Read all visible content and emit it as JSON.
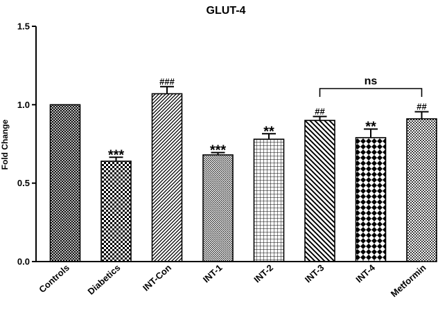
{
  "chart_data": {
    "type": "bar",
    "title": "GLUT-4",
    "xlabel": "",
    "ylabel": "Fold Change",
    "ylim": [
      0,
      1.5
    ],
    "yticks": [
      "0.0",
      "0.5",
      "1.0",
      "1.5"
    ],
    "categories": [
      "Controls",
      "Diabetics",
      "INT-Con",
      "INT-1",
      "INT-2",
      "INT-3",
      "INT-4",
      "Metformin"
    ],
    "values": [
      1.0,
      0.64,
      1.07,
      0.68,
      0.78,
      0.9,
      0.79,
      0.91
    ],
    "errors": [
      0.0,
      0.025,
      0.045,
      0.015,
      0.035,
      0.025,
      0.055,
      0.045
    ],
    "significance": [
      "",
      "***",
      "###",
      "***",
      "**",
      "##",
      "**",
      "##"
    ],
    "patterns": [
      "dense-crosshatch",
      "checker",
      "diag-left",
      "diag-right-fine",
      "grid",
      "diag-right",
      "diamond-check",
      "dots"
    ],
    "annotations": [
      {
        "text": "ns",
        "from_category": "INT-3",
        "to_category": "Metformin"
      }
    ],
    "grid": false,
    "legend": "none"
  }
}
